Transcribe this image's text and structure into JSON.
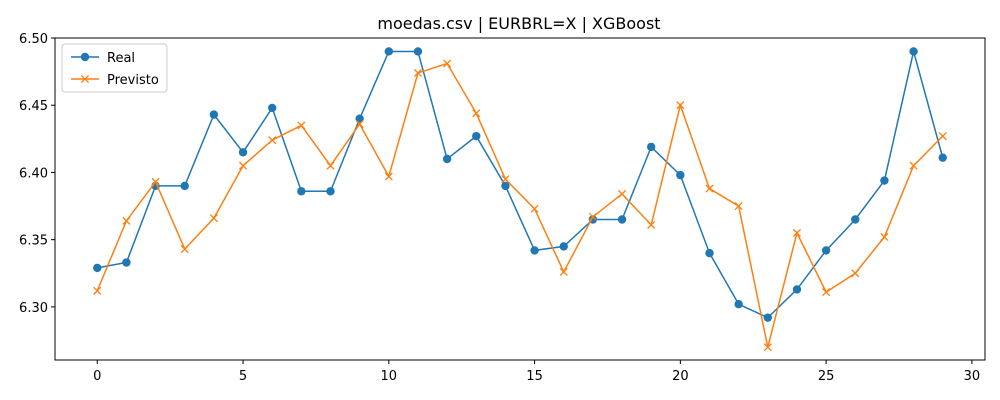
{
  "chart_data": {
    "type": "line",
    "title": "moedas.csv | EURBRL=X | XGBoost",
    "xlabel": "",
    "ylabel": "",
    "xlim": [
      -1.45,
      30.45
    ],
    "ylim": [
      6.2605,
      6.5
    ],
    "x_ticks": [
      0,
      5,
      10,
      15,
      20,
      25,
      30
    ],
    "y_ticks": [
      6.3,
      6.35,
      6.4,
      6.45,
      6.5
    ],
    "x_tick_labels": [
      "0",
      "5",
      "10",
      "15",
      "20",
      "25",
      "30"
    ],
    "y_tick_labels": [
      "6.30",
      "6.35",
      "6.40",
      "6.45",
      "6.50"
    ],
    "grid": false,
    "legend_position": "top-left",
    "x": [
      0,
      1,
      2,
      3,
      4,
      5,
      6,
      7,
      8,
      9,
      10,
      11,
      12,
      13,
      14,
      15,
      16,
      17,
      18,
      19,
      20,
      21,
      22,
      23,
      24,
      25,
      26,
      27,
      28,
      29
    ],
    "series": [
      {
        "name": "Real",
        "marker": "circle",
        "color": "#1f77b4",
        "values": [
          6.329,
          6.333,
          6.39,
          6.39,
          6.443,
          6.415,
          6.448,
          6.386,
          6.386,
          6.44,
          6.49,
          6.49,
          6.41,
          6.427,
          6.39,
          6.342,
          6.345,
          6.365,
          6.365,
          6.419,
          6.398,
          6.34,
          6.302,
          6.292,
          6.313,
          6.342,
          6.365,
          6.394,
          6.49,
          6.411
        ]
      },
      {
        "name": "Previsto",
        "marker": "x",
        "color": "#ff7f0e",
        "values": [
          6.312,
          6.364,
          6.393,
          6.343,
          6.366,
          6.405,
          6.424,
          6.435,
          6.405,
          6.436,
          6.397,
          6.474,
          6.481,
          6.444,
          6.395,
          6.373,
          6.326,
          6.367,
          6.384,
          6.361,
          6.45,
          6.388,
          6.375,
          6.27,
          6.355,
          6.311,
          6.325,
          6.352,
          6.405,
          6.427
        ]
      }
    ]
  }
}
